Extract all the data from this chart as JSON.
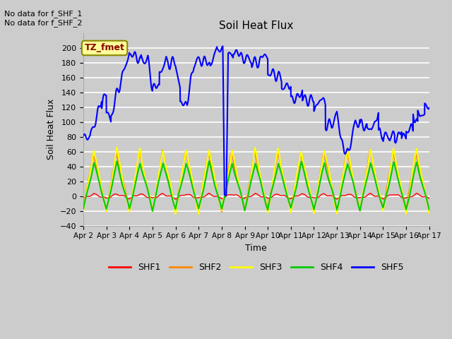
{
  "title": "Soil Heat Flux",
  "xlabel": "Time",
  "ylabel": "Soil Heat Flux",
  "ylim": [
    -40,
    220
  ],
  "yticks": [
    -40,
    -20,
    0,
    20,
    40,
    60,
    80,
    100,
    120,
    140,
    160,
    180,
    200
  ],
  "annotation_text": "No data for f_SHF_1\nNo data for f_SHF_2",
  "legend_labels": [
    "SHF1",
    "SHF2",
    "SHF3",
    "SHF4",
    "SHF5"
  ],
  "legend_colors": [
    "#ff0000",
    "#ff8800",
    "#ffff00",
    "#00cc00",
    "#0000ff"
  ],
  "box_label": "TZ_fmet",
  "box_facecolor": "#ffff99",
  "box_edgecolor": "#888800",
  "box_textcolor": "#880000",
  "figsize": [
    6.4,
    4.8
  ],
  "dpi": 100
}
